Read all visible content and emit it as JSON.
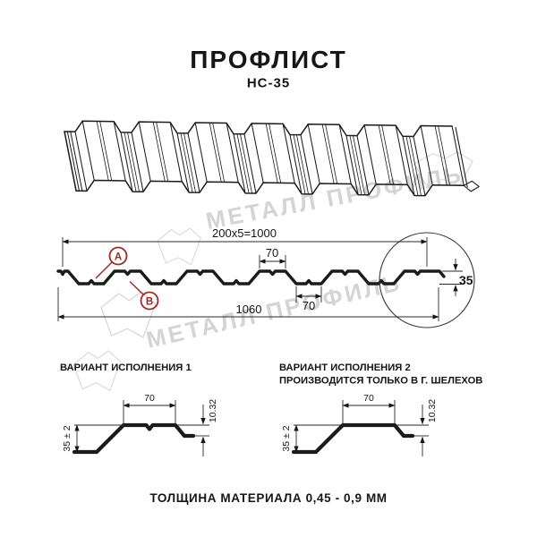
{
  "header": {
    "title": "ПРОФЛИСТ",
    "subtitle": "НС-35"
  },
  "watermark": {
    "brand": "МЕТАЛЛ ПРОФИЛЬ",
    "color": "#d4d4d4"
  },
  "cross_section": {
    "dim_top": "200x5=1000",
    "dim_rib_top": "70",
    "dim_rib_bottom": "70",
    "dim_overall": "1060",
    "dim_height": "35",
    "marker_a": "А",
    "marker_b": "В"
  },
  "variants": [
    {
      "title": "ВАРИАНТ ИСПОЛНЕНИЯ 1",
      "subtitle": "",
      "dim_width": "70",
      "dim_lip": "10.32",
      "dim_height": "35 ± 2"
    },
    {
      "title": "ВАРИАНТ ИСПОЛНЕНИЯ 2",
      "subtitle": "ПРОИЗВОДИТСЯ ТОЛЬКО В Г. ШЕЛЕХОВ",
      "dim_width": "70",
      "dim_lip": "10.32",
      "dim_height": "35 ± 2"
    }
  ],
  "footer": {
    "note": "ТОЛЩИНА МАТЕРИАЛА 0,45 - 0,9 ММ"
  },
  "colors": {
    "line": "#1b1b1b",
    "marker": "#9e2b22",
    "watermark": "#d4d4d4"
  }
}
